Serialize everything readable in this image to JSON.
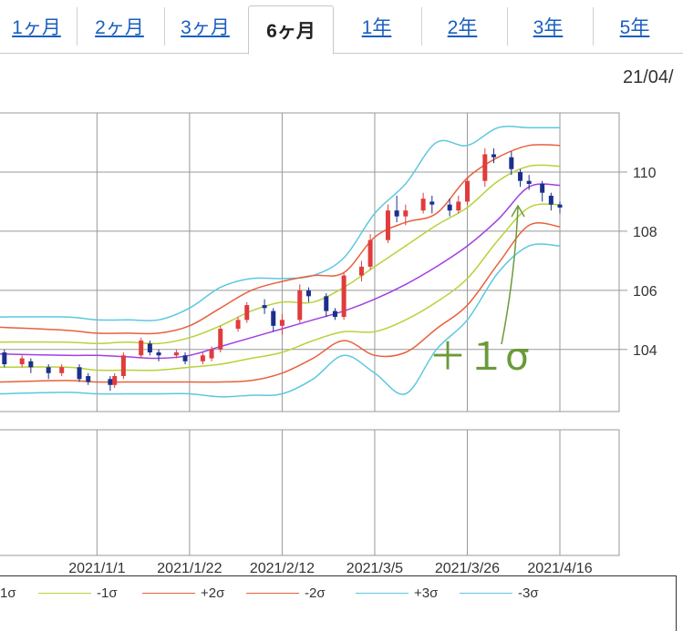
{
  "tabs": [
    {
      "label": "1ヶ月",
      "active": false
    },
    {
      "label": "2ヶ月",
      "active": false
    },
    {
      "label": "3ヶ月",
      "active": false
    },
    {
      "label": "6ヶ月",
      "active": true
    },
    {
      "label": "1年",
      "active": false
    },
    {
      "label": "2年",
      "active": false
    },
    {
      "label": "3年",
      "active": false
    },
    {
      "label": "5年",
      "active": false
    }
  ],
  "date_label": "21/04/",
  "annotation": {
    "text": "＋１σ",
    "color": "#6a9a3a"
  },
  "colors": {
    "sma": "#a040e0",
    "band1": "#b8d23a",
    "band2": "#e8603c",
    "band3": "#5cc8e0",
    "up_candle": "#e03c3c",
    "down_candle": "#1c2f8c",
    "grid": "#999999"
  },
  "chart_data": {
    "type": "candlestick",
    "x_tick_labels": [
      "2021/1/1",
      "2021/1/22",
      "2021/2/12",
      "2021/3/5",
      "2021/3/26",
      "2021/4/16"
    ],
    "y_tick_labels": [
      "104",
      "106",
      "108",
      "110"
    ],
    "y_ticks": [
      104,
      106,
      108,
      110
    ],
    "ylim": [
      101.9,
      112.0
    ],
    "grid": true,
    "legend_position": "bottom",
    "series": [
      {
        "name": "-1σ",
        "color": "#b8d23a"
      },
      {
        "name": "+2σ",
        "color": "#e8603c"
      },
      {
        "name": "-2σ",
        "color": "#e8603c"
      },
      {
        "name": "+3σ",
        "color": "#5cc8e0"
      },
      {
        "name": "-3σ",
        "color": "#5cc8e0"
      }
    ],
    "partial_legend_label": "1σ",
    "x_start": "2020-12-10",
    "x_end": "2021-04-16",
    "bands": {
      "sma": [
        [
          "2020-12-10",
          103.85
        ],
        [
          "2020-12-25",
          103.8
        ],
        [
          "2021-01-01",
          103.8
        ],
        [
          "2021-01-08",
          103.75
        ],
        [
          "2021-01-15",
          103.7
        ],
        [
          "2021-01-22",
          103.8
        ],
        [
          "2021-01-29",
          104.1
        ],
        [
          "2021-02-05",
          104.4
        ],
        [
          "2021-02-12",
          104.7
        ],
        [
          "2021-02-19",
          105.0
        ],
        [
          "2021-02-26",
          105.3
        ],
        [
          "2021-03-05",
          105.7
        ],
        [
          "2021-03-12",
          106.2
        ],
        [
          "2021-03-19",
          106.8
        ],
        [
          "2021-03-26",
          107.5
        ],
        [
          "2021-04-02",
          108.4
        ],
        [
          "2021-04-09",
          109.5
        ],
        [
          "2021-04-16",
          109.55
        ]
      ],
      "p1": [
        [
          "2020-12-10",
          104.25
        ],
        [
          "2020-12-25",
          104.25
        ],
        [
          "2021-01-01",
          104.2
        ],
        [
          "2021-01-08",
          104.25
        ],
        [
          "2021-01-15",
          104.2
        ],
        [
          "2021-01-22",
          104.4
        ],
        [
          "2021-01-29",
          104.8
        ],
        [
          "2021-02-05",
          105.3
        ],
        [
          "2021-02-12",
          105.6
        ],
        [
          "2021-02-19",
          105.6
        ],
        [
          "2021-02-26",
          106.1
        ],
        [
          "2021-03-05",
          106.8
        ],
        [
          "2021-03-12",
          107.5
        ],
        [
          "2021-03-19",
          108.2
        ],
        [
          "2021-03-26",
          108.8
        ],
        [
          "2021-04-02",
          109.7
        ],
        [
          "2021-04-09",
          110.2
        ],
        [
          "2021-04-16",
          110.2
        ]
      ],
      "m1": [
        [
          "2020-12-10",
          103.4
        ],
        [
          "2020-12-25",
          103.4
        ],
        [
          "2021-01-01",
          103.3
        ],
        [
          "2021-01-08",
          103.3
        ],
        [
          "2021-01-15",
          103.3
        ],
        [
          "2021-01-22",
          103.4
        ],
        [
          "2021-01-29",
          103.5
        ],
        [
          "2021-02-05",
          103.7
        ],
        [
          "2021-02-12",
          103.9
        ],
        [
          "2021-02-19",
          104.3
        ],
        [
          "2021-02-26",
          104.6
        ],
        [
          "2021-03-05",
          104.6
        ],
        [
          "2021-03-12",
          105.0
        ],
        [
          "2021-03-19",
          105.6
        ],
        [
          "2021-03-26",
          106.4
        ],
        [
          "2021-04-02",
          107.7
        ],
        [
          "2021-04-09",
          108.8
        ],
        [
          "2021-04-16",
          108.9
        ]
      ],
      "p2": [
        [
          "2020-12-10",
          104.75
        ],
        [
          "2020-12-25",
          104.65
        ],
        [
          "2021-01-01",
          104.55
        ],
        [
          "2021-01-08",
          104.55
        ],
        [
          "2021-01-15",
          104.55
        ],
        [
          "2021-01-22",
          104.8
        ],
        [
          "2021-01-29",
          105.4
        ],
        [
          "2021-02-05",
          106.0
        ],
        [
          "2021-02-12",
          106.3
        ],
        [
          "2021-02-19",
          106.5
        ],
        [
          "2021-02-26",
          106.6
        ],
        [
          "2021-03-05",
          107.8
        ],
        [
          "2021-03-12",
          108.3
        ],
        [
          "2021-03-19",
          108.6
        ],
        [
          "2021-03-26",
          109.8
        ],
        [
          "2021-04-02",
          110.5
        ],
        [
          "2021-04-09",
          110.9
        ],
        [
          "2021-04-16",
          110.9
        ]
      ],
      "m2": [
        [
          "2020-12-10",
          102.9
        ],
        [
          "2020-12-25",
          102.95
        ],
        [
          "2021-01-01",
          102.9
        ],
        [
          "2021-01-08",
          102.9
        ],
        [
          "2021-01-15",
          102.9
        ],
        [
          "2021-01-22",
          102.9
        ],
        [
          "2021-01-29",
          102.9
        ],
        [
          "2021-02-05",
          102.95
        ],
        [
          "2021-02-12",
          103.2
        ],
        [
          "2021-02-19",
          103.7
        ],
        [
          "2021-02-26",
          104.3
        ],
        [
          "2021-03-05",
          103.8
        ],
        [
          "2021-03-12",
          103.9
        ],
        [
          "2021-03-19",
          104.7
        ],
        [
          "2021-03-26",
          105.5
        ],
        [
          "2021-04-02",
          106.9
        ],
        [
          "2021-04-09",
          108.2
        ],
        [
          "2021-04-16",
          108.15
        ]
      ],
      "p3": [
        [
          "2020-12-10",
          105.1
        ],
        [
          "2020-12-25",
          105.1
        ],
        [
          "2021-01-01",
          105.0
        ],
        [
          "2021-01-08",
          105.0
        ],
        [
          "2021-01-15",
          105.0
        ],
        [
          "2021-01-22",
          105.4
        ],
        [
          "2021-01-29",
          106.1
        ],
        [
          "2021-02-05",
          106.4
        ],
        [
          "2021-02-12",
          106.4
        ],
        [
          "2021-02-19",
          106.5
        ],
        [
          "2021-02-26",
          107.1
        ],
        [
          "2021-03-05",
          108.6
        ],
        [
          "2021-03-12",
          109.6
        ],
        [
          "2021-03-19",
          111.0
        ],
        [
          "2021-03-26",
          110.9
        ],
        [
          "2021-04-02",
          111.5
        ],
        [
          "2021-04-09",
          111.5
        ],
        [
          "2021-04-16",
          111.5
        ]
      ],
      "m3": [
        [
          "2020-12-10",
          102.5
        ],
        [
          "2020-12-25",
          102.55
        ],
        [
          "2021-01-01",
          102.5
        ],
        [
          "2021-01-08",
          102.5
        ],
        [
          "2021-01-15",
          102.5
        ],
        [
          "2021-01-22",
          102.5
        ],
        [
          "2021-01-29",
          102.4
        ],
        [
          "2021-02-05",
          102.45
        ],
        [
          "2021-02-12",
          102.5
        ],
        [
          "2021-02-19",
          103.0
        ],
        [
          "2021-02-26",
          103.8
        ],
        [
          "2021-03-05",
          103.2
        ],
        [
          "2021-03-12",
          102.5
        ],
        [
          "2021-03-19",
          104.0
        ],
        [
          "2021-03-26",
          105.0
        ],
        [
          "2021-04-02",
          106.6
        ],
        [
          "2021-04-09",
          107.5
        ],
        [
          "2021-04-16",
          107.5
        ]
      ]
    },
    "candles": [
      [
        "2020-12-11",
        103.9,
        103.5,
        104.0,
        103.4
      ],
      [
        "2020-12-15",
        103.5,
        103.7,
        103.8,
        103.4
      ],
      [
        "2020-12-17",
        103.6,
        103.4,
        103.7,
        103.2
      ],
      [
        "2020-12-21",
        103.4,
        103.2,
        103.5,
        103.0
      ],
      [
        "2020-12-24",
        103.2,
        103.4,
        103.5,
        103.1
      ],
      [
        "2020-12-28",
        103.4,
        103.0,
        103.5,
        102.9
      ],
      [
        "2020-12-30",
        103.1,
        102.9,
        103.2,
        102.8
      ],
      [
        "2021-01-04",
        103.0,
        102.8,
        103.1,
        102.6
      ],
      [
        "2021-01-05",
        102.8,
        103.1,
        103.2,
        102.7
      ],
      [
        "2021-01-07",
        103.1,
        103.8,
        103.9,
        103.0
      ],
      [
        "2021-01-11",
        103.8,
        104.3,
        104.4,
        103.7
      ],
      [
        "2021-01-13",
        104.2,
        103.9,
        104.3,
        103.8
      ],
      [
        "2021-01-15",
        103.9,
        103.8,
        104.0,
        103.6
      ],
      [
        "2021-01-19",
        103.8,
        103.9,
        104.0,
        103.7
      ],
      [
        "2021-01-21",
        103.8,
        103.6,
        103.9,
        103.5
      ],
      [
        "2021-01-25",
        103.6,
        103.8,
        103.9,
        103.5
      ],
      [
        "2021-01-27",
        103.7,
        104.0,
        104.1,
        103.6
      ],
      [
        "2021-01-29",
        104.0,
        104.7,
        104.8,
        103.9
      ],
      [
        "2021-02-02",
        104.7,
        105.0,
        105.1,
        104.6
      ],
      [
        "2021-02-04",
        105.0,
        105.5,
        105.6,
        104.9
      ],
      [
        "2021-02-08",
        105.5,
        105.4,
        105.7,
        105.2
      ],
      [
        "2021-02-10",
        105.3,
        104.8,
        105.4,
        104.6
      ],
      [
        "2021-02-12",
        104.8,
        105.0,
        105.2,
        104.5
      ],
      [
        "2021-02-16",
        105.0,
        106.0,
        106.2,
        104.9
      ],
      [
        "2021-02-18",
        106.0,
        105.8,
        106.1,
        105.6
      ],
      [
        "2021-02-22",
        105.8,
        105.3,
        105.9,
        105.1
      ],
      [
        "2021-02-24",
        105.3,
        105.1,
        105.4,
        105.0
      ],
      [
        "2021-02-26",
        105.1,
        106.5,
        106.6,
        105.0
      ],
      [
        "2021-03-02",
        106.5,
        106.8,
        107.0,
        106.3
      ],
      [
        "2021-03-04",
        106.8,
        107.7,
        107.9,
        106.7
      ],
      [
        "2021-03-08",
        107.7,
        108.7,
        108.9,
        107.6
      ],
      [
        "2021-03-10",
        108.7,
        108.5,
        109.2,
        108.3
      ],
      [
        "2021-03-12",
        108.5,
        108.7,
        108.9,
        108.2
      ],
      [
        "2021-03-16",
        108.7,
        109.1,
        109.3,
        108.6
      ],
      [
        "2021-03-18",
        109.0,
        108.9,
        109.2,
        108.6
      ],
      [
        "2021-03-22",
        108.9,
        108.7,
        109.1,
        108.5
      ],
      [
        "2021-03-24",
        108.7,
        109.0,
        109.2,
        108.6
      ],
      [
        "2021-03-26",
        109.0,
        109.7,
        109.8,
        108.9
      ],
      [
        "2021-03-30",
        109.7,
        110.6,
        110.8,
        109.5
      ],
      [
        "2021-04-01",
        110.6,
        110.5,
        110.8,
        110.3
      ],
      [
        "2021-04-05",
        110.5,
        110.1,
        110.7,
        109.9
      ],
      [
        "2021-04-07",
        110.0,
        109.7,
        110.1,
        109.5
      ],
      [
        "2021-04-09",
        109.7,
        109.6,
        109.9,
        109.4
      ],
      [
        "2021-04-12",
        109.6,
        109.3,
        109.7,
        109.0
      ],
      [
        "2021-04-14",
        109.2,
        108.9,
        109.3,
        108.7
      ],
      [
        "2021-04-16",
        108.9,
        108.8,
        109.0,
        108.6
      ]
    ]
  }
}
